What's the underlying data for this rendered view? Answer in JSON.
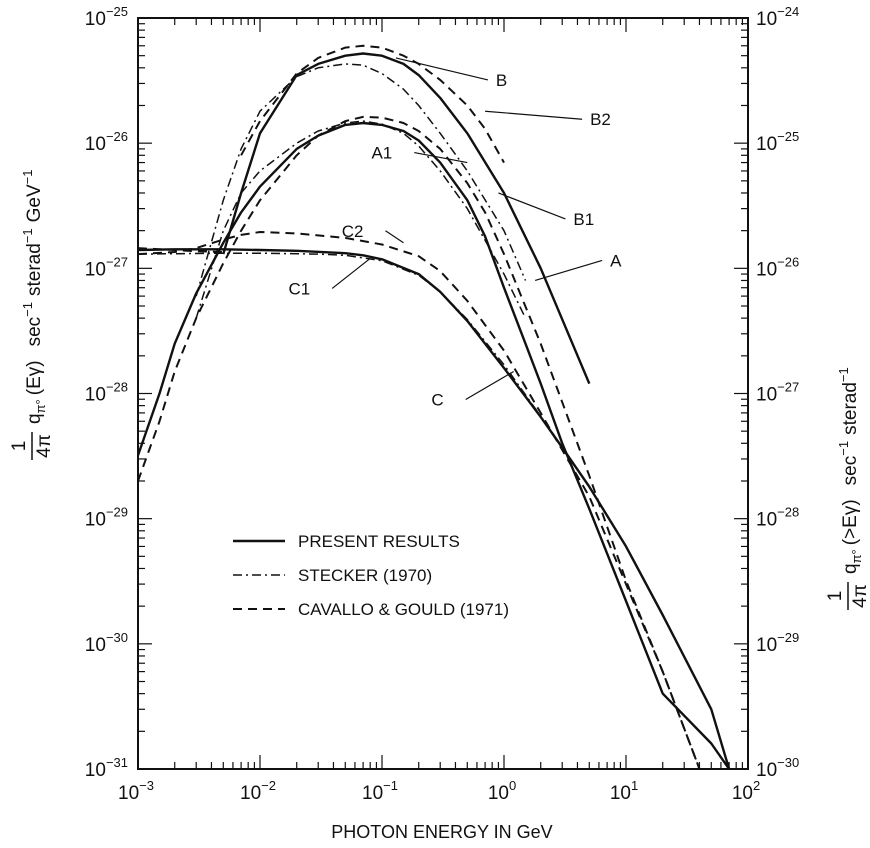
{
  "chart_data": {
    "type": "line",
    "xlabel": "PHOTON ENERGY IN GeV",
    "ylabel_left": {
      "fraction_numerator": "1",
      "fraction_denominator": "4π",
      "q": "q",
      "q_sub": "π°",
      "arg": "(Eγ)",
      "units_1": "sec",
      "units_1_exp": "−1",
      "units_2": "sterad",
      "units_2_exp": "−1",
      "units_3": "GeV",
      "units_3_exp": "−1"
    },
    "ylabel_right": {
      "fraction_numerator": "1",
      "fraction_denominator": "4π",
      "q": "q",
      "q_sub": "π°",
      "arg": "(>Eγ)",
      "units_1": "sec",
      "units_1_exp": "−1",
      "units_2": "sterad",
      "units_2_exp": "−1"
    },
    "x_scale": "log",
    "y_scale": "log",
    "xlim": [
      0.001,
      100
    ],
    "ylim_left": [
      1e-31,
      1e-25
    ],
    "ylim_right": [
      1e-30,
      1e-24
    ],
    "x_ticks": [
      {
        "base": "10",
        "exp": "−3"
      },
      {
        "base": "10",
        "exp": "−2"
      },
      {
        "base": "10",
        "exp": "−1"
      },
      {
        "base": "10",
        "exp": "0"
      },
      {
        "base": "10",
        "exp": "1"
      },
      {
        "base": "10",
        "exp": "2"
      }
    ],
    "y_ticks_left": [
      {
        "base": "10",
        "exp": "−31"
      },
      {
        "base": "10",
        "exp": "−30"
      },
      {
        "base": "10",
        "exp": "−29"
      },
      {
        "base": "10",
        "exp": "−28"
      },
      {
        "base": "10",
        "exp": "−27"
      },
      {
        "base": "10",
        "exp": "−26"
      },
      {
        "base": "10",
        "exp": "−25"
      }
    ],
    "y_ticks_right": [
      {
        "base": "10",
        "exp": "−30"
      },
      {
        "base": "10",
        "exp": "−29"
      },
      {
        "base": "10",
        "exp": "−28"
      },
      {
        "base": "10",
        "exp": "−27"
      },
      {
        "base": "10",
        "exp": "−26"
      },
      {
        "base": "10",
        "exp": "−25"
      },
      {
        "base": "10",
        "exp": "−24"
      }
    ],
    "legend": {
      "placement": "lower-left",
      "entries": [
        {
          "label": "PRESENT RESULTS",
          "style": "solid"
        },
        {
          "label": "STECKER (1970)",
          "style": "dashdot"
        },
        {
          "label": "CAVALLO & GOULD (1971)",
          "style": "dashed"
        }
      ]
    },
    "series": [
      {
        "style": "solid",
        "label": "A",
        "x": [
          0.001,
          0.0015,
          0.002,
          0.003,
          0.005,
          0.007,
          0.01,
          0.02,
          0.03,
          0.05,
          0.07,
          0.1,
          0.15,
          0.2,
          0.3,
          0.5,
          0.7,
          1,
          1.5,
          2,
          3,
          5,
          10,
          20,
          50,
          70
        ],
        "y": [
          3.2e-29,
          1e-28,
          2.5e-28,
          6.3e-28,
          1.6e-27,
          2.8e-27,
          4.5e-27,
          9e-27,
          1.15e-26,
          1.4e-26,
          1.45e-26,
          1.4e-26,
          1.25e-26,
          1.05e-26,
          7e-27,
          3.5e-27,
          1.8e-27,
          7e-28,
          2.5e-28,
          1.2e-28,
          4e-29,
          1.2e-29,
          2.2e-30,
          4e-31,
          1.6e-31,
          1e-31
        ]
      },
      {
        "style": "solid",
        "label": "B",
        "x": [
          0.005,
          0.007,
          0.01,
          0.02,
          0.03,
          0.05,
          0.07,
          0.1,
          0.15,
          0.2,
          0.3,
          0.5,
          1,
          2,
          5
        ],
        "y": [
          1.3e-27,
          4e-27,
          1.2e-26,
          3.5e-26,
          4.3e-26,
          5e-26,
          5.2e-26,
          5e-26,
          4.3e-26,
          3.5e-26,
          2.3e-26,
          1.2e-26,
          4e-27,
          1e-27,
          1.2e-28
        ]
      },
      {
        "style": "solid",
        "label": "C",
        "x": [
          0.001,
          0.002,
          0.005,
          0.01,
          0.02,
          0.05,
          0.07,
          0.1,
          0.2,
          0.3,
          0.5,
          1,
          2,
          3,
          5,
          10,
          20,
          50,
          70
        ],
        "y": [
          1.4e-27,
          1.42e-27,
          1.42e-27,
          1.4e-27,
          1.38e-27,
          1.32e-27,
          1.27e-27,
          1.18e-27,
          9e-28,
          6.5e-28,
          3.8e-28,
          1.6e-28,
          6.5e-29,
          3.7e-29,
          1.8e-29,
          6e-30,
          1.7e-30,
          3e-31,
          1e-31
        ]
      },
      {
        "style": "dashdot",
        "label": "B1",
        "x": [
          0.003,
          0.005,
          0.007,
          0.01,
          0.02,
          0.03,
          0.05,
          0.07,
          0.1,
          0.15,
          0.2,
          0.3,
          0.5,
          1,
          1.5
        ],
        "y": [
          6e-28,
          3.5e-27,
          9e-27,
          1.8e-26,
          3.4e-26,
          4e-26,
          4.3e-26,
          4.2e-26,
          3.6e-26,
          2.7e-26,
          2e-26,
          1.2e-26,
          6e-27,
          2e-27,
          8e-28
        ]
      },
      {
        "style": "dashdot",
        "label": "A1",
        "x": [
          0.003,
          0.005,
          0.007,
          0.01,
          0.02,
          0.03,
          0.05,
          0.07,
          0.1,
          0.15,
          0.2,
          0.3,
          0.5,
          1,
          1.5
        ],
        "y": [
          4e-28,
          2e-27,
          4e-27,
          6e-27,
          1e-26,
          1.25e-26,
          1.45e-26,
          1.5e-26,
          1.42e-26,
          1.2e-26,
          9.5e-27,
          6e-27,
          3e-27,
          9e-28,
          4e-28
        ]
      },
      {
        "style": "dashdot",
        "label": "C1",
        "x": [
          0.001,
          0.005,
          0.01,
          0.03,
          0.05,
          0.1,
          0.2,
          0.3,
          0.5,
          1,
          2
        ],
        "y": [
          1.3e-27,
          1.32e-27,
          1.32e-27,
          1.3e-27,
          1.27e-27,
          1.15e-27,
          8.8e-28,
          6.5e-28,
          3.9e-28,
          1.7e-28,
          6.6e-29
        ]
      },
      {
        "style": "dashed",
        "label": "B2",
        "x": [
          0.007,
          0.01,
          0.02,
          0.03,
          0.05,
          0.07,
          0.1,
          0.15,
          0.2,
          0.3,
          0.5,
          0.7,
          1
        ],
        "y": [
          8e-27,
          1.5e-26,
          3.6e-26,
          4.8e-26,
          5.8e-26,
          6e-26,
          5.8e-26,
          5e-26,
          4.3e-26,
          3.2e-26,
          2e-26,
          1.3e-26,
          7e-27
        ]
      },
      {
        "style": "dashed",
        "label": "",
        "x": [
          0.001,
          0.0015,
          0.002,
          0.003,
          0.005,
          0.007,
          0.01,
          0.02,
          0.03,
          0.05,
          0.07,
          0.1,
          0.15,
          0.2,
          0.3,
          0.5,
          0.7,
          1,
          2,
          5,
          10,
          20,
          40
        ],
        "y": [
          2e-29,
          6e-29,
          1.5e-28,
          4e-28,
          1.1e-27,
          2e-27,
          3.5e-27,
          8e-27,
          1.15e-26,
          1.5e-26,
          1.62e-26,
          1.6e-26,
          1.45e-26,
          1.25e-26,
          9e-27,
          4.8e-27,
          2.8e-27,
          1.3e-27,
          2.5e-28,
          2.2e-29,
          3.2e-30,
          6e-31,
          1e-31
        ]
      },
      {
        "style": "dashed",
        "label": "C2",
        "x": [
          0.001,
          0.002,
          0.003,
          0.005,
          0.007,
          0.01,
          0.02,
          0.05,
          0.1,
          0.2,
          0.3,
          0.5,
          1,
          2,
          5,
          10,
          20,
          40
        ],
        "y": [
          1.3e-27,
          1.35e-27,
          1.45e-27,
          1.7e-27,
          1.85e-27,
          1.95e-27,
          1.9e-27,
          1.75e-27,
          1.55e-27,
          1.25e-27,
          9.5e-28,
          5.5e-28,
          2.2e-28,
          7e-29,
          1.5e-29,
          3e-30,
          6e-31,
          1e-31
        ]
      },
      {
        "style": "dashed",
        "label": "",
        "x": [
          0.001,
          0.002,
          0.003,
          0.005
        ],
        "y": [
          1.45e-27,
          1.4e-27,
          1.37e-27,
          1.35e-27
        ]
      }
    ],
    "annotations": [
      {
        "text": "B",
        "x": 0.13,
        "y": 4.8e-26
      },
      {
        "text": "B2",
        "x": 0.7,
        "y": 1.8e-26
      },
      {
        "text": "A1",
        "x": 0.5,
        "y": 7e-27
      },
      {
        "text": "B1",
        "x": 0.9,
        "y": 4e-27
      },
      {
        "text": "C2",
        "x": 0.15,
        "y": 1.6e-27
      },
      {
        "text": "C1",
        "x": 0.08,
        "y": 1.2e-27
      },
      {
        "text": "A",
        "x": 1.8,
        "y": 8e-28
      },
      {
        "text": "C",
        "x": 1.2,
        "y": 1.5e-28
      }
    ]
  }
}
